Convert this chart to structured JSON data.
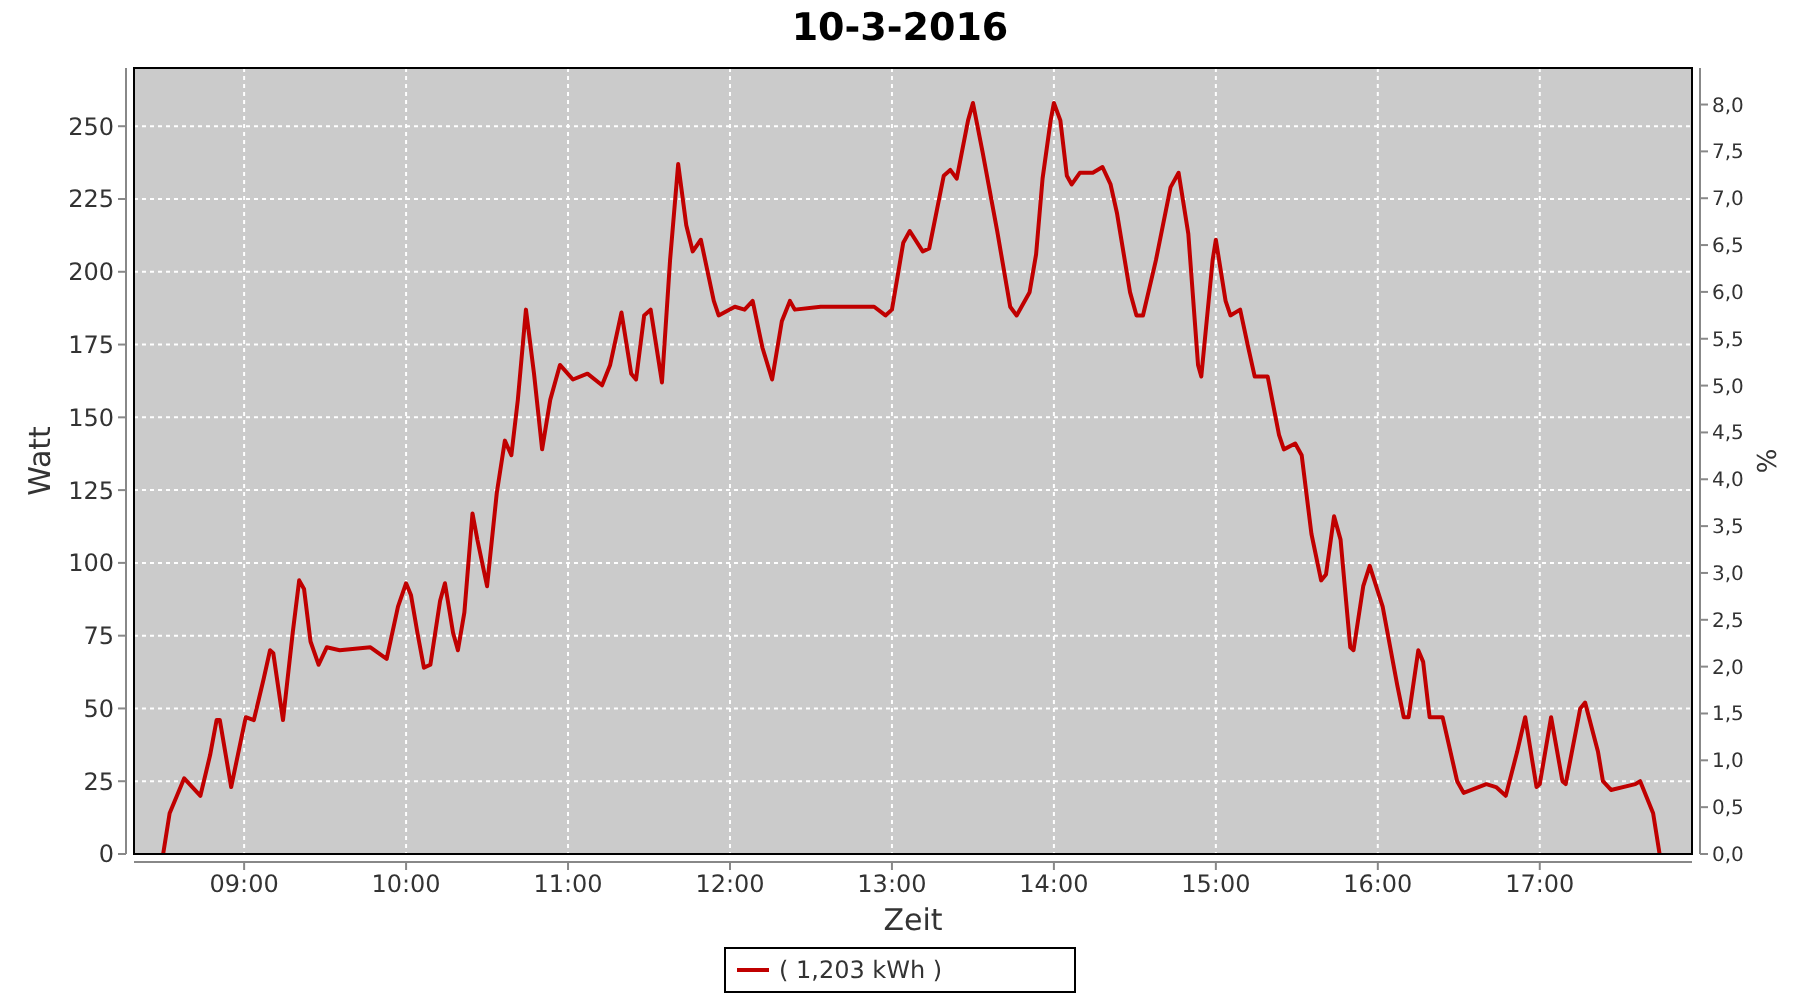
{
  "chart_data": {
    "type": "line",
    "title": "10-3-2016",
    "xlabel": "Zeit",
    "ylabel": "Watt",
    "y2label": "%",
    "xlim": [
      8.32,
      17.94
    ],
    "xticks": [
      {
        "value": 9,
        "label": "09:00"
      },
      {
        "value": 10,
        "label": "10:00"
      },
      {
        "value": 11,
        "label": "11:00"
      },
      {
        "value": 12,
        "label": "12:00"
      },
      {
        "value": 13,
        "label": "13:00"
      },
      {
        "value": 14,
        "label": "14:00"
      },
      {
        "value": 15,
        "label": "15:00"
      },
      {
        "value": 16,
        "label": "16:00"
      },
      {
        "value": 17,
        "label": "17:00"
      }
    ],
    "ylim": [
      0,
      270
    ],
    "yticks": [
      0,
      25,
      50,
      75,
      100,
      125,
      150,
      175,
      200,
      225,
      250
    ],
    "y2lim": [
      0,
      8.39
    ],
    "y2ticks": [
      {
        "value": 0,
        "label": "0,0"
      },
      {
        "value": 0.5,
        "label": "0,5"
      },
      {
        "value": 1,
        "label": "1,0"
      },
      {
        "value": 1.5,
        "label": "1,5"
      },
      {
        "value": 2,
        "label": "2,0"
      },
      {
        "value": 2.5,
        "label": "2,5"
      },
      {
        "value": 3,
        "label": "3,0"
      },
      {
        "value": 3.5,
        "label": "3,5"
      },
      {
        "value": 4,
        "label": "4,0"
      },
      {
        "value": 4.5,
        "label": "4,5"
      },
      {
        "value": 5,
        "label": "5,0"
      },
      {
        "value": 5.5,
        "label": "5,5"
      },
      {
        "value": 6,
        "label": "6,0"
      },
      {
        "value": 6.5,
        "label": "6,5"
      },
      {
        "value": 7,
        "label": "7,0"
      },
      {
        "value": 7.5,
        "label": "7,5"
      },
      {
        "value": 8,
        "label": "8,0"
      }
    ],
    "grid": true,
    "legend": "bottom",
    "marker": "none",
    "line_style": "solid",
    "series": [
      {
        "name": "( 1,203 kWh )",
        "color": "#c00000",
        "x": [
          8.5,
          8.54,
          8.63,
          8.73,
          8.79,
          8.83,
          8.85,
          8.92,
          8.98,
          9.01,
          9.06,
          9.12,
          9.16,
          9.18,
          9.24,
          9.3,
          9.34,
          9.37,
          9.41,
          9.46,
          9.51,
          9.59,
          9.78,
          9.88,
          9.95,
          10.0,
          10.03,
          10.07,
          10.11,
          10.15,
          10.21,
          10.24,
          10.29,
          10.32,
          10.36,
          10.41,
          10.44,
          10.5,
          10.56,
          10.61,
          10.65,
          10.69,
          10.74,
          10.79,
          10.84,
          10.89,
          10.95,
          11.03,
          11.12,
          11.21,
          11.26,
          11.33,
          11.39,
          11.42,
          11.47,
          11.51,
          11.58,
          11.63,
          11.68,
          11.73,
          11.77,
          11.82,
          11.9,
          11.93,
          12.03,
          12.09,
          12.14,
          12.2,
          12.26,
          12.32,
          12.37,
          12.4,
          12.56,
          12.89,
          12.96,
          13.0,
          13.07,
          13.11,
          13.19,
          13.23,
          13.32,
          13.36,
          13.4,
          13.47,
          13.5,
          13.56,
          13.65,
          13.73,
          13.77,
          13.85,
          13.89,
          13.93,
          13.98,
          14.0,
          14.04,
          14.08,
          14.11,
          14.16,
          14.24,
          14.3,
          14.35,
          14.39,
          14.47,
          14.51,
          14.55,
          14.63,
          14.72,
          14.77,
          14.83,
          14.89,
          14.91,
          14.98,
          15.0,
          15.06,
          15.09,
          15.15,
          15.2,
          15.24,
          15.32,
          15.39,
          15.42,
          15.49,
          15.53,
          15.59,
          15.65,
          15.68,
          15.73,
          15.77,
          15.83,
          15.85,
          15.91,
          15.95,
          16.03,
          16.12,
          16.16,
          16.19,
          16.25,
          16.28,
          16.32,
          16.4,
          16.49,
          16.53,
          16.67,
          16.73,
          16.79,
          16.86,
          16.91,
          16.98,
          17.0,
          17.07,
          17.14,
          17.16,
          17.25,
          17.28,
          17.36,
          17.39,
          17.44,
          17.59,
          17.62,
          17.7,
          17.74
        ],
        "values": [
          0,
          14,
          26,
          20,
          34,
          46,
          46,
          23,
          39,
          47,
          46,
          60,
          70,
          69,
          46,
          76,
          94,
          91,
          73,
          65,
          71,
          70,
          71,
          67,
          85,
          93,
          89,
          76,
          64,
          65,
          87,
          93,
          76,
          70,
          83,
          117,
          108,
          92,
          124,
          142,
          137,
          156,
          187,
          165,
          139,
          156,
          168,
          163,
          165,
          161,
          168,
          186,
          165,
          163,
          185,
          187,
          162,
          204,
          237,
          216,
          207,
          211,
          190,
          185,
          188,
          187,
          190,
          174,
          163,
          183,
          190,
          187,
          188,
          188,
          185,
          187,
          210,
          214,
          207,
          208,
          233,
          235,
          232,
          252,
          258,
          241,
          214,
          188,
          185,
          193,
          206,
          232,
          252,
          258,
          252,
          233,
          230,
          234,
          234,
          236,
          230,
          220,
          193,
          185,
          185,
          204,
          229,
          234,
          213,
          168,
          164,
          204,
          211,
          190,
          185,
          187,
          174,
          164,
          164,
          144,
          139,
          141,
          137,
          110,
          94,
          96,
          116,
          108,
          71,
          70,
          92,
          99,
          85,
          58,
          47,
          47,
          70,
          66,
          47,
          47,
          25,
          21,
          24,
          23,
          20,
          35,
          47,
          23,
          24,
          47,
          25,
          24,
          50,
          52,
          35,
          25,
          22,
          24,
          25,
          14,
          0
        ]
      }
    ]
  }
}
